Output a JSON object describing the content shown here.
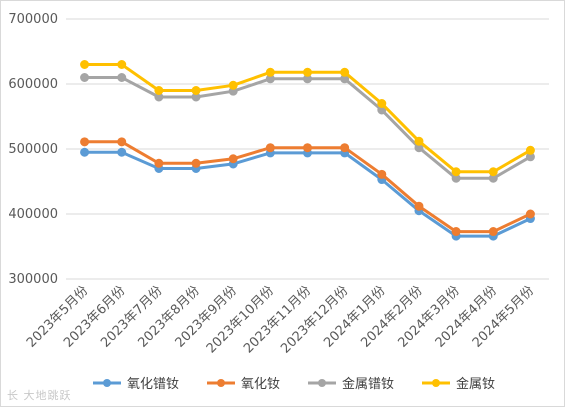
{
  "chart_data": {
    "type": "line",
    "title": "",
    "xlabel": "",
    "ylabel": "",
    "ylim": [
      300000,
      700000
    ],
    "yticks": [
      300000,
      400000,
      500000,
      600000,
      700000
    ],
    "grid": true,
    "legend_position": "bottom",
    "categories": [
      "2023年5月份",
      "2023年6月份",
      "2023年7月份",
      "2023年8月份",
      "2023年9月份",
      "2023年10月份",
      "2023年11月份",
      "2023年12月份",
      "2024年1月份",
      "2024年2月份",
      "2024年3月份",
      "2024年4月份",
      "2024年5月份"
    ],
    "series": [
      {
        "name": "氧化镨钕",
        "color": "#5b9bd5",
        "values": [
          495000,
          495000,
          470000,
          470000,
          477000,
          494000,
          494000,
          494000,
          453000,
          405000,
          366000,
          366000,
          393000
        ]
      },
      {
        "name": "氧化钕",
        "color": "#ed7d31",
        "values": [
          511000,
          511000,
          478000,
          478000,
          485000,
          502000,
          502000,
          502000,
          461000,
          412000,
          373000,
          373000,
          400000
        ]
      },
      {
        "name": "金属镨钕",
        "color": "#a5a5a5",
        "values": [
          610000,
          610000,
          580000,
          580000,
          589000,
          608000,
          608000,
          608000,
          560000,
          502000,
          455000,
          455000,
          488000
        ]
      },
      {
        "name": "金属钕",
        "color": "#ffc000",
        "values": [
          630000,
          630000,
          590000,
          590000,
          598000,
          618000,
          618000,
          618000,
          570000,
          512000,
          465000,
          465000,
          498000
        ]
      }
    ]
  },
  "watermark": {
    "text": "长  大地跳跃",
    "icon": "weibo-logo-icon"
  }
}
